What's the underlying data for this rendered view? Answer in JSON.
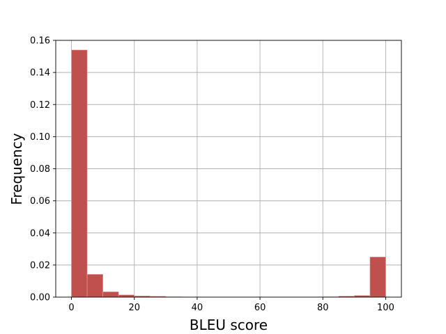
{
  "chart_data": {
    "type": "bar",
    "subtype": "histogram",
    "title": "",
    "xlabel": "BLEU score",
    "ylabel": "Frequency",
    "xlim": [
      -5,
      105
    ],
    "ylim": [
      0,
      0.16
    ],
    "xticks": [
      0,
      20,
      40,
      60,
      80,
      100
    ],
    "yticks": [
      0,
      0.02,
      0.04,
      0.06,
      0.08,
      0.1,
      0.12,
      0.14,
      0.16
    ],
    "ytick_labels": [
      "0.00",
      "0.02",
      "0.04",
      "0.06",
      "0.08",
      "0.10",
      "0.12",
      "0.14",
      "0.16"
    ],
    "grid": true,
    "bar_color": "#c0504d",
    "bins": [
      {
        "start": 0,
        "end": 5,
        "value": 0.154
      },
      {
        "start": 5,
        "end": 10,
        "value": 0.0142
      },
      {
        "start": 10,
        "end": 15,
        "value": 0.0033
      },
      {
        "start": 15,
        "end": 20,
        "value": 0.0014
      },
      {
        "start": 20,
        "end": 25,
        "value": 0.0007
      },
      {
        "start": 25,
        "end": 30,
        "value": 0.0005
      },
      {
        "start": 30,
        "end": 35,
        "value": 0.0002
      },
      {
        "start": 35,
        "end": 40,
        "value": 0.0001
      },
      {
        "start": 40,
        "end": 45,
        "value": 0.0001
      },
      {
        "start": 45,
        "end": 50,
        "value": 0.0001
      },
      {
        "start": 50,
        "end": 55,
        "value": 0.0001
      },
      {
        "start": 55,
        "end": 60,
        "value": 0.0001
      },
      {
        "start": 60,
        "end": 65,
        "value": 0.0001
      },
      {
        "start": 65,
        "end": 70,
        "value": 0.0001
      },
      {
        "start": 70,
        "end": 75,
        "value": 0.0001
      },
      {
        "start": 75,
        "end": 80,
        "value": 0.0001
      },
      {
        "start": 80,
        "end": 85,
        "value": 0.0002
      },
      {
        "start": 85,
        "end": 90,
        "value": 0.0006
      },
      {
        "start": 90,
        "end": 95,
        "value": 0.001
      },
      {
        "start": 95,
        "end": 100,
        "value": 0.025
      }
    ]
  }
}
